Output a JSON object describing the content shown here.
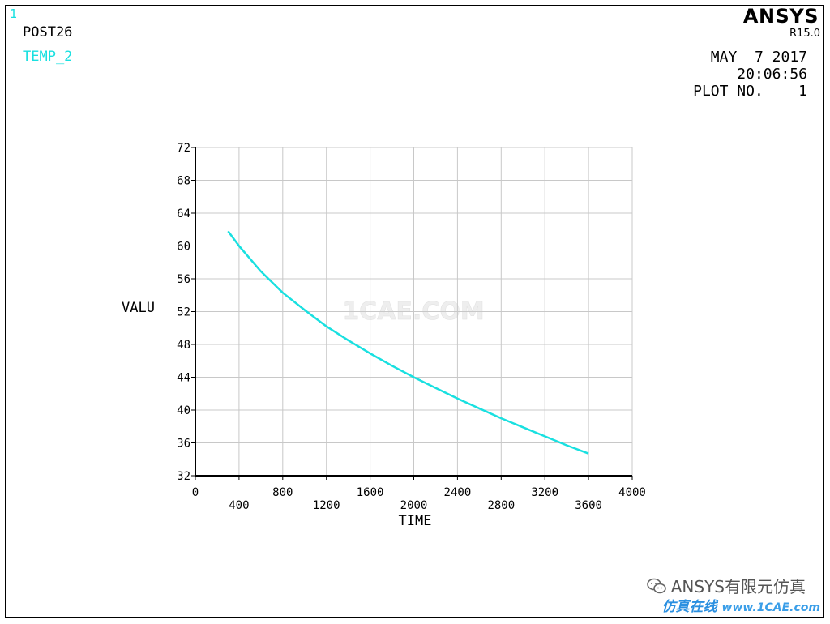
{
  "header": {
    "window_number": "1",
    "post_label": "POST26",
    "variable_label": "TEMP_2",
    "brand": "ANSYS",
    "release": "R15.0",
    "date": "MAY  7 2017",
    "time": "20:06:56",
    "plot_no": "PLOT NO.    1"
  },
  "watermark": {
    "account": "ANSYS有限元仿真",
    "site_cn": "仿真在线",
    "site_url": "www.1CAE.com",
    "center_text": "1CAE.COM"
  },
  "colors": {
    "curve": "#19e0e0",
    "axes": "#000000",
    "grid": "#c8c8c8",
    "label": "#000000"
  },
  "chart_data": {
    "type": "line",
    "xlabel": "TIME",
    "ylabel": "VALU",
    "xlim": [
      0,
      4000
    ],
    "ylim": [
      32,
      72
    ],
    "xticks": [
      0,
      400,
      800,
      1200,
      1600,
      2000,
      2400,
      2800,
      3200,
      3600,
      4000
    ],
    "yticks": [
      32,
      36,
      40,
      44,
      48,
      52,
      56,
      60,
      64,
      68,
      72
    ],
    "grid": true,
    "series": [
      {
        "name": "TEMP_2",
        "x": [
          300,
          400,
          600,
          800,
          1000,
          1200,
          1400,
          1600,
          1800,
          2000,
          2200,
          2400,
          2600,
          2800,
          3000,
          3200,
          3400,
          3600
        ],
        "y": [
          61.8,
          60.0,
          56.9,
          54.3,
          52.2,
          50.2,
          48.5,
          46.9,
          45.4,
          44.0,
          42.7,
          41.4,
          40.2,
          39.0,
          37.9,
          36.8,
          35.7,
          34.7
        ]
      }
    ]
  }
}
